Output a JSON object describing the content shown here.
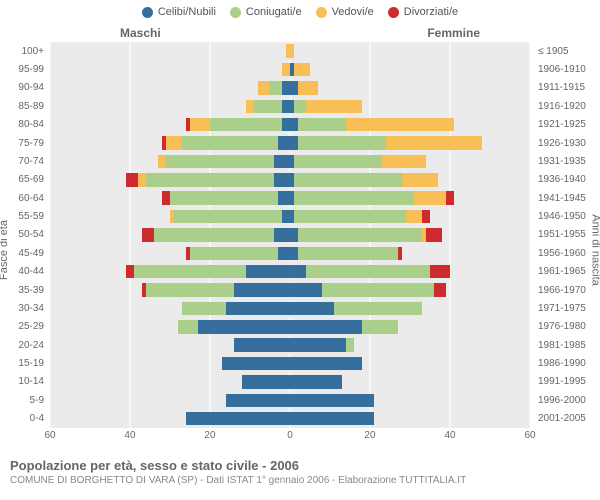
{
  "legend": [
    {
      "label": "Celibi/Nubili",
      "color": "#366f9d"
    },
    {
      "label": "Coniugati/e",
      "color": "#a9cf8b"
    },
    {
      "label": "Vedovi/e",
      "color": "#f8bf57"
    },
    {
      "label": "Divorziati/e",
      "color": "#cd2b2e"
    }
  ],
  "headers": {
    "male": "Maschi",
    "female": "Femmine"
  },
  "axes": {
    "y_left_title": "Fasce di età",
    "y_right_title": "Anni di nascita",
    "x_max": 60,
    "x_ticks": [
      60,
      40,
      20,
      0,
      20,
      40,
      60
    ],
    "background_color": "#ebebeb",
    "grid_color": "#ffffff"
  },
  "colors": {
    "celibe": "#366f9d",
    "coniug": "#a9cf8b",
    "vedovo": "#f8bf57",
    "divor": "#cd2b2e"
  },
  "rows": [
    {
      "age": "100+",
      "birth": "≤ 1905",
      "m": {
        "c": 0,
        "g": 0,
        "v": 1,
        "d": 0
      },
      "f": {
        "c": 0,
        "g": 0,
        "v": 1,
        "d": 0
      }
    },
    {
      "age": "95-99",
      "birth": "1906-1910",
      "m": {
        "c": 0,
        "g": 0,
        "v": 2,
        "d": 0
      },
      "f": {
        "c": 1,
        "g": 0,
        "v": 4,
        "d": 0
      }
    },
    {
      "age": "90-94",
      "birth": "1911-1915",
      "m": {
        "c": 2,
        "g": 3,
        "v": 3,
        "d": 0
      },
      "f": {
        "c": 2,
        "g": 0,
        "v": 5,
        "d": 0
      }
    },
    {
      "age": "85-89",
      "birth": "1916-1920",
      "m": {
        "c": 2,
        "g": 7,
        "v": 2,
        "d": 0
      },
      "f": {
        "c": 1,
        "g": 3,
        "v": 14,
        "d": 0
      }
    },
    {
      "age": "80-84",
      "birth": "1921-1925",
      "m": {
        "c": 2,
        "g": 18,
        "v": 5,
        "d": 1
      },
      "f": {
        "c": 2,
        "g": 12,
        "v": 27,
        "d": 0
      }
    },
    {
      "age": "75-79",
      "birth": "1926-1930",
      "m": {
        "c": 3,
        "g": 24,
        "v": 4,
        "d": 1
      },
      "f": {
        "c": 2,
        "g": 22,
        "v": 24,
        "d": 0
      }
    },
    {
      "age": "70-74",
      "birth": "1931-1935",
      "m": {
        "c": 4,
        "g": 27,
        "v": 2,
        "d": 0
      },
      "f": {
        "c": 1,
        "g": 22,
        "v": 11,
        "d": 0
      }
    },
    {
      "age": "65-69",
      "birth": "1936-1940",
      "m": {
        "c": 4,
        "g": 32,
        "v": 2,
        "d": 3
      },
      "f": {
        "c": 1,
        "g": 27,
        "v": 9,
        "d": 0
      }
    },
    {
      "age": "60-64",
      "birth": "1941-1945",
      "m": {
        "c": 3,
        "g": 27,
        "v": 0,
        "d": 2
      },
      "f": {
        "c": 1,
        "g": 30,
        "v": 8,
        "d": 2
      }
    },
    {
      "age": "55-59",
      "birth": "1946-1950",
      "m": {
        "c": 2,
        "g": 27,
        "v": 1,
        "d": 0
      },
      "f": {
        "c": 1,
        "g": 28,
        "v": 4,
        "d": 2
      }
    },
    {
      "age": "50-54",
      "birth": "1951-1955",
      "m": {
        "c": 4,
        "g": 30,
        "v": 0,
        "d": 3
      },
      "f": {
        "c": 2,
        "g": 31,
        "v": 1,
        "d": 4
      }
    },
    {
      "age": "45-49",
      "birth": "1956-1960",
      "m": {
        "c": 3,
        "g": 22,
        "v": 0,
        "d": 1
      },
      "f": {
        "c": 2,
        "g": 25,
        "v": 0,
        "d": 1
      }
    },
    {
      "age": "40-44",
      "birth": "1961-1965",
      "m": {
        "c": 11,
        "g": 28,
        "v": 0,
        "d": 2
      },
      "f": {
        "c": 4,
        "g": 31,
        "v": 0,
        "d": 5
      }
    },
    {
      "age": "35-39",
      "birth": "1966-1970",
      "m": {
        "c": 14,
        "g": 22,
        "v": 0,
        "d": 1
      },
      "f": {
        "c": 8,
        "g": 28,
        "v": 0,
        "d": 3
      }
    },
    {
      "age": "30-34",
      "birth": "1971-1975",
      "m": {
        "c": 16,
        "g": 11,
        "v": 0,
        "d": 0
      },
      "f": {
        "c": 11,
        "g": 22,
        "v": 0,
        "d": 0
      }
    },
    {
      "age": "25-29",
      "birth": "1976-1980",
      "m": {
        "c": 23,
        "g": 5,
        "v": 0,
        "d": 0
      },
      "f": {
        "c": 18,
        "g": 9,
        "v": 0,
        "d": 0
      }
    },
    {
      "age": "20-24",
      "birth": "1981-1985",
      "m": {
        "c": 14,
        "g": 0,
        "v": 0,
        "d": 0
      },
      "f": {
        "c": 14,
        "g": 2,
        "v": 0,
        "d": 0
      }
    },
    {
      "age": "15-19",
      "birth": "1986-1990",
      "m": {
        "c": 17,
        "g": 0,
        "v": 0,
        "d": 0
      },
      "f": {
        "c": 18,
        "g": 0,
        "v": 0,
        "d": 0
      }
    },
    {
      "age": "10-14",
      "birth": "1991-1995",
      "m": {
        "c": 12,
        "g": 0,
        "v": 0,
        "d": 0
      },
      "f": {
        "c": 13,
        "g": 0,
        "v": 0,
        "d": 0
      }
    },
    {
      "age": "5-9",
      "birth": "1996-2000",
      "m": {
        "c": 16,
        "g": 0,
        "v": 0,
        "d": 0
      },
      "f": {
        "c": 21,
        "g": 0,
        "v": 0,
        "d": 0
      }
    },
    {
      "age": "0-4",
      "birth": "2001-2005",
      "m": {
        "c": 26,
        "g": 0,
        "v": 0,
        "d": 0
      },
      "f": {
        "c": 21,
        "g": 0,
        "v": 0,
        "d": 0
      }
    }
  ],
  "footer": {
    "title": "Popolazione per età, sesso e stato civile - 2006",
    "subtitle": "COMUNE DI BORGHETTO DI VARA (SP) - Dati ISTAT 1° gennaio 2006 - Elaborazione TUTTITALIA.IT"
  }
}
